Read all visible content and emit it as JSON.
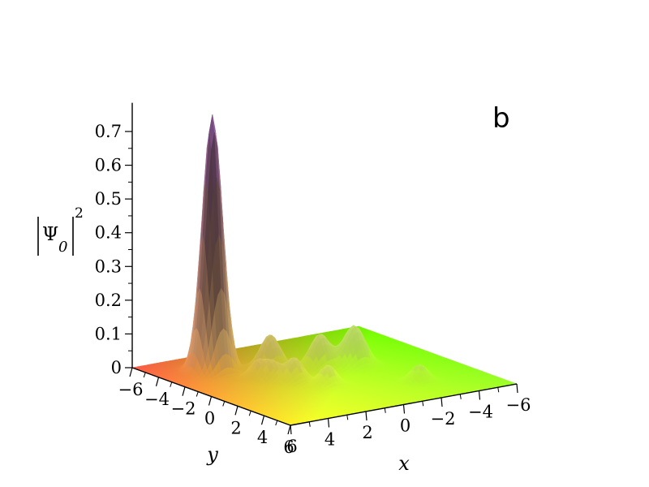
{
  "panel_label": "b",
  "z_axis_label": {
    "main": "Ψ",
    "subscript": "0",
    "superscript": "2"
  },
  "chart_data": {
    "type": "surface3d",
    "title": "",
    "panel_label": "b",
    "xlabel": "x",
    "ylabel": "y",
    "zlabel": "|Ψ_0|^2",
    "xlim": [
      -6,
      6
    ],
    "ylim": [
      -6,
      6
    ],
    "zlim": [
      0,
      0.77
    ],
    "x_ticks": [
      6,
      4,
      2,
      0,
      -2,
      -4,
      -6
    ],
    "y_ticks": [
      -6,
      -4,
      -2,
      0,
      2,
      4,
      6
    ],
    "z_ticks": [
      0,
      0.1,
      0.2,
      0.3,
      0.4,
      0.5,
      0.6,
      0.7
    ],
    "x_tick_labels": [
      "6",
      "4",
      "2",
      "0",
      "−2",
      "−4",
      "−6"
    ],
    "y_tick_labels": [
      "−6",
      "−4",
      "−2",
      "0",
      "2",
      "4",
      "6"
    ],
    "z_tick_labels": [
      "0",
      "0.1",
      "0.2",
      "0.3",
      "0.4",
      "0.5",
      "0.6",
      "0.7"
    ],
    "peaks": [
      {
        "x": 3.5,
        "y": -3.5,
        "height": 0.76,
        "width": 0.45
      },
      {
        "x": 1.2,
        "y": -2.4,
        "height": 0.1,
        "width": 0.45
      },
      {
        "x": -0.6,
        "y": -1.2,
        "height": 0.1,
        "width": 0.45
      },
      {
        "x": -2.0,
        "y": -0.6,
        "height": 0.12,
        "width": 0.5
      },
      {
        "x": 2.6,
        "y": -1.4,
        "height": 0.05,
        "width": 0.35
      },
      {
        "x": 2.2,
        "y": -0.8,
        "height": 0.05,
        "width": 0.35
      },
      {
        "x": 1.6,
        "y": 0.0,
        "height": 0.07,
        "width": 0.4
      },
      {
        "x": 0.8,
        "y": 1.4,
        "height": 0.06,
        "width": 0.4
      },
      {
        "x": -2.8,
        "y": 3.2,
        "height": 0.05,
        "width": 0.4
      }
    ],
    "colormap": "xy-based (red at y=-6, yellow at y=+6, green at x=-6)"
  }
}
